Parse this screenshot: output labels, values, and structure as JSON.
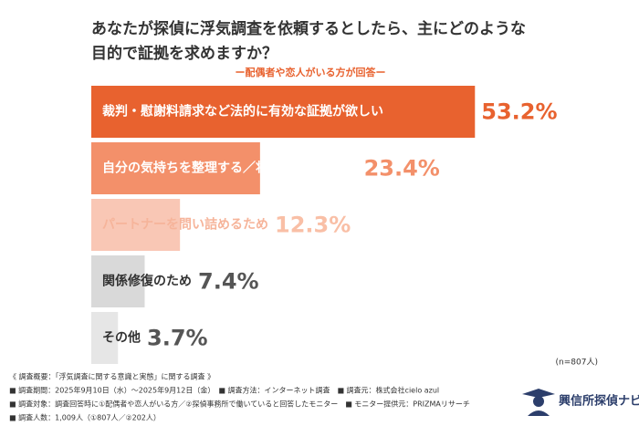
{
  "chart_data": {
    "type": "bar",
    "title": [
      "あなたが探偵に浮気調査を依頼するとしたら、主にどのような",
      "目的で証拠を求めますか？"
    ],
    "subtitle": "ー配偶者や恋人がいる方が回答ー",
    "categories": [
      "裁判・慰謝料請求など法的に有効な証拠が欲しい",
      "自分の気持ちを整理する／将来に備えるため",
      "パートナーを問い詰めるため",
      "関係修復のため",
      "その他"
    ],
    "values": [
      53.2,
      23.4,
      12.3,
      7.4,
      3.7
    ],
    "value_labels": [
      "53.2%",
      "23.4%",
      "12.3%",
      "7.4%",
      "3.7%"
    ],
    "colors": [
      "#e8622f",
      "#f3906a",
      "#f9c7b5",
      "#d9d9d9",
      "#e6e6e6"
    ],
    "note": "(n=807人)",
    "footer": [
      "《 調査概要：「浮気調査に関する意識と実態」に関する調査 》",
      "■ 調査期間：2025年9月10日（水）～2025年9月12日（金）　■ 調査方法：インターネット調査　■ 調査元：株式会社cielo azul",
      "■ 調査対象：調査回答時に①配偶者や恋人がいる方／②探偵事務所で働いていると回答したモニター　■ モニター提供元：PRIZMAリサーチ",
      "■ 調査人数：1,009人（①807人／②202人）"
    ],
    "brand": "興信所探偵ナビ"
  }
}
